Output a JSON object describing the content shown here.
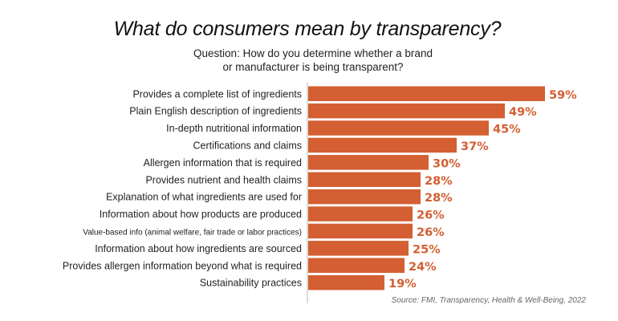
{
  "chart_data": {
    "type": "bar",
    "orientation": "horizontal",
    "title": "What do consumers mean by transparency?",
    "subtitle": [
      "Question: How do you determine whether a brand",
      "or manufacturer is being transparent?"
    ],
    "categories": [
      "Provides a complete list of ingredients",
      "Plain English description of ingredients",
      "In-depth nutritional information",
      "Certifications and claims",
      "Allergen information that is required",
      "Provides nutrient and health claims",
      "Explanation of what ingredients are used for",
      "Information about how products are produced",
      "Value-based info (animal welfare, fair trade or labor practices)",
      "Information about how ingredients are sourced",
      "Provides allergen information beyond what is required",
      "Sustainability practices"
    ],
    "values": [
      59,
      49,
      45,
      37,
      30,
      28,
      28,
      26,
      26,
      25,
      24,
      19
    ],
    "value_labels": [
      "59%",
      "49%",
      "45%",
      "37%",
      "30%",
      "28%",
      "28%",
      "26%",
      "26%",
      "25%",
      "24%",
      "19%"
    ],
    "unit": "%",
    "xlim": [
      0,
      59
    ],
    "grid": false,
    "bar_color": "#d35f33",
    "source": "Source: FMI, Transparency, Health & Well-Being, 2022"
  }
}
